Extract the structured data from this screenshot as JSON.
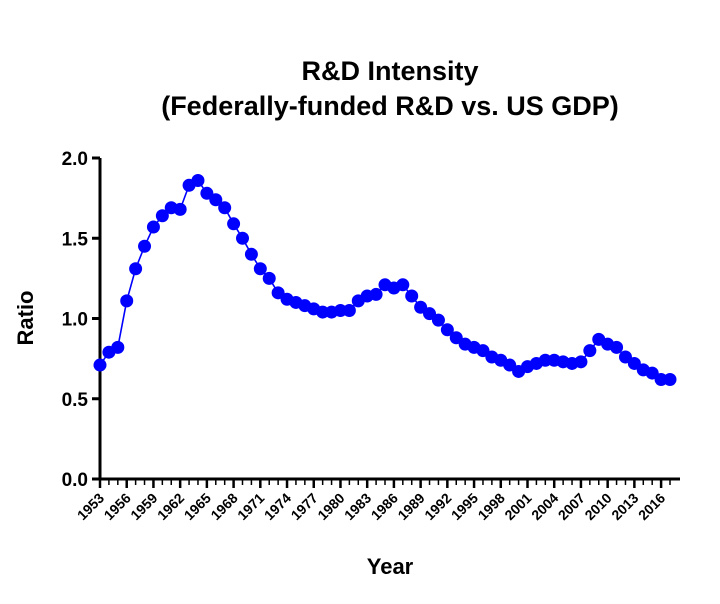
{
  "chart_data": {
    "type": "line",
    "title": [
      "R&D Intensity",
      "(Federally-funded R&D vs. US GDP)"
    ],
    "xlabel": "Year",
    "ylabel": "Ratio",
    "ylim": [
      0,
      2.0
    ],
    "xlim": [
      1953,
      2017
    ],
    "yticks": [
      "0.0",
      "0.5",
      "1.0",
      "1.5",
      "2.0"
    ],
    "xticks": [
      "1953",
      "1956",
      "1959",
      "1962",
      "1965",
      "1968",
      "1971",
      "1974",
      "1977",
      "1980",
      "1983",
      "1986",
      "1989",
      "1992",
      "1995",
      "1998",
      "2001",
      "2004",
      "2007",
      "2010",
      "2013",
      "2016"
    ],
    "grid": false,
    "series_color": "#0000ff",
    "x": [
      1953,
      1954,
      1955,
      1956,
      1957,
      1958,
      1959,
      1960,
      1961,
      1962,
      1963,
      1964,
      1965,
      1966,
      1967,
      1968,
      1969,
      1970,
      1971,
      1972,
      1973,
      1974,
      1975,
      1976,
      1977,
      1978,
      1979,
      1980,
      1981,
      1982,
      1983,
      1984,
      1985,
      1986,
      1987,
      1988,
      1989,
      1990,
      1991,
      1992,
      1993,
      1994,
      1995,
      1996,
      1997,
      1998,
      1999,
      2000,
      2001,
      2002,
      2003,
      2004,
      2005,
      2006,
      2007,
      2008,
      2009,
      2010,
      2011,
      2012,
      2013,
      2014,
      2015,
      2016,
      2017
    ],
    "values": [
      0.71,
      0.79,
      0.82,
      1.11,
      1.31,
      1.45,
      1.57,
      1.64,
      1.69,
      1.68,
      1.83,
      1.86,
      1.78,
      1.74,
      1.69,
      1.59,
      1.5,
      1.4,
      1.31,
      1.25,
      1.16,
      1.12,
      1.1,
      1.08,
      1.06,
      1.04,
      1.04,
      1.05,
      1.05,
      1.11,
      1.14,
      1.15,
      1.21,
      1.19,
      1.21,
      1.14,
      1.07,
      1.03,
      0.99,
      0.93,
      0.88,
      0.84,
      0.82,
      0.8,
      0.76,
      0.74,
      0.71,
      0.67,
      0.7,
      0.72,
      0.74,
      0.74,
      0.73,
      0.72,
      0.73,
      0.8,
      0.87,
      0.84,
      0.82,
      0.76,
      0.72,
      0.68,
      0.66,
      0.62,
      0.62
    ]
  }
}
